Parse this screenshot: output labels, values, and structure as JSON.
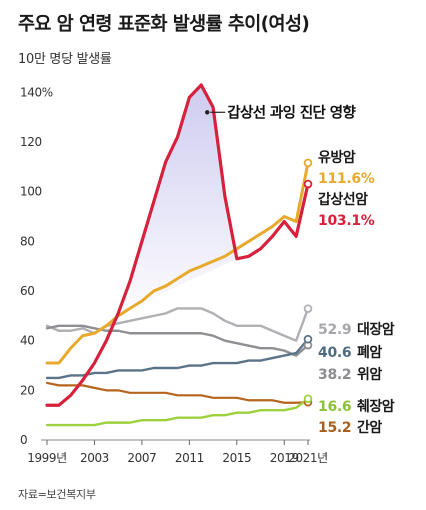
{
  "header": {
    "title": "주요 암 연령 표준화 발생률 추이(여성)",
    "unit": "10만 명당 발생률",
    "source": "자료=보건복지부"
  },
  "chart_data": {
    "type": "line",
    "title": "주요 암 연령 표준화 발생률 추이(여성)",
    "ylabel": "10만 명당 발생률",
    "xlim": [
      1999,
      2021
    ],
    "ylim": [
      0,
      145
    ],
    "x_tick_labels": [
      "1999년",
      "2003",
      "2007",
      "2011",
      "2015",
      "2019",
      "2021년"
    ],
    "x_tick_values": [
      1999,
      2003,
      2007,
      2011,
      2015,
      2019,
      2021
    ],
    "y_tick_labels": [
      "0",
      "20",
      "40",
      "60",
      "80",
      "100",
      "120",
      "140%"
    ],
    "y_tick_values": [
      0,
      20,
      40,
      60,
      80,
      100,
      120,
      140
    ],
    "grid": false,
    "annotation": "갑상선 과잉 진단 영향",
    "x": [
      1999,
      2000,
      2001,
      2002,
      2003,
      2004,
      2005,
      2006,
      2007,
      2008,
      2009,
      2010,
      2011,
      2012,
      2013,
      2014,
      2015,
      2016,
      2017,
      2018,
      2019,
      2020,
      2021
    ],
    "series": [
      {
        "name": "유방암",
        "end_value": "111.6%",
        "color": "#e8a92c",
        "values": [
          31,
          31,
          37,
          42,
          43,
          46,
          50,
          53,
          56,
          60,
          62,
          65,
          68,
          70,
          72,
          74,
          77,
          80,
          83,
          86,
          90,
          88,
          111.6
        ]
      },
      {
        "name": "갑상선암",
        "end_value": "103.1%",
        "color": "#d6203c",
        "values": [
          14,
          14,
          18,
          24,
          31,
          40,
          51,
          64,
          80,
          96,
          112,
          122,
          138,
          143,
          134,
          98,
          73,
          74,
          77,
          82,
          88,
          82,
          103.1
        ]
      },
      {
        "name": "대장암",
        "end_value": "52.9",
        "color": "#b0b0b4",
        "values": [
          46,
          44,
          44,
          45,
          43,
          46,
          47,
          48,
          49,
          50,
          51,
          53,
          53,
          53,
          51,
          48,
          46,
          46,
          46,
          44,
          42,
          40,
          52.9
        ]
      },
      {
        "name": "폐암",
        "end_value": "40.6",
        "color": "#5c7487",
        "values": [
          25,
          25,
          26,
          26,
          27,
          27,
          28,
          28,
          28,
          29,
          29,
          29,
          30,
          30,
          31,
          31,
          31,
          32,
          32,
          33,
          34,
          35,
          40.6
        ]
      },
      {
        "name": "위암",
        "end_value": "38.2",
        "color": "#8f8f93",
        "values": [
          45,
          46,
          46,
          46,
          45,
          44,
          44,
          43,
          43,
          43,
          43,
          43,
          43,
          43,
          42,
          40,
          39,
          38,
          37,
          37,
          36,
          34,
          38.2
        ]
      },
      {
        "name": "췌장암",
        "end_value": "16.6",
        "color": "#9dd13c",
        "values": [
          6,
          6,
          6,
          6,
          6,
          7,
          7,
          7,
          8,
          8,
          8,
          9,
          9,
          9,
          10,
          10,
          11,
          11,
          12,
          12,
          12,
          13,
          16.6
        ]
      },
      {
        "name": "간암",
        "end_value": "15.2",
        "color": "#b5651d",
        "values": [
          23,
          22,
          22,
          22,
          21,
          20,
          20,
          19,
          19,
          19,
          19,
          18,
          18,
          18,
          17,
          17,
          17,
          16,
          16,
          16,
          15,
          15,
          15.2
        ]
      }
    ]
  }
}
